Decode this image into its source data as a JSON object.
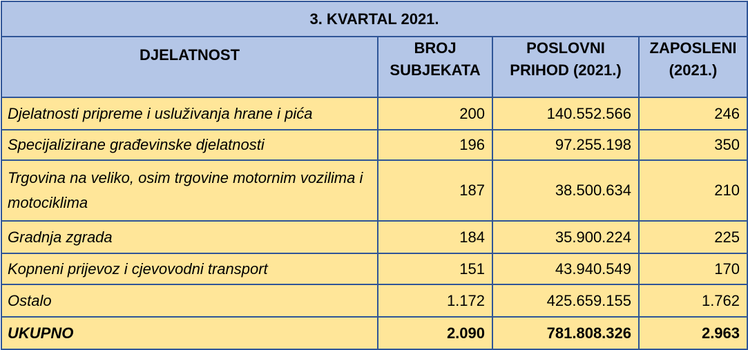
{
  "table": {
    "title": "3. KVARTAL 2021.",
    "columns": [
      "DJELATNOST",
      "BROJ SUBJEKATA",
      "POSLOVNI PRIHOD (2021.)",
      "ZAPOSLENI (2021.)"
    ],
    "column_lines": [
      [
        "DJELATNOST"
      ],
      [
        "BROJ",
        "SUBJEKATA"
      ],
      [
        "POSLOVNI",
        "PRIHOD (2021.)"
      ],
      [
        "ZAPOSLENI",
        "(2021.)"
      ]
    ],
    "rows": [
      {
        "djelatnost": "Djelatnosti pripreme i usluživanja hrane i pića",
        "broj_subjekata": "200",
        "poslovni_prihod": "140.552.566",
        "zaposleni": "246"
      },
      {
        "djelatnost": "Specijalizirane građevinske djelatnosti",
        "broj_subjekata": "196",
        "poslovni_prihod": "97.255.198",
        "zaposleni": "350"
      },
      {
        "djelatnost": "Trgovina na veliko, osim trgovine motornim vozilima i motociklima",
        "broj_subjekata": "187",
        "poslovni_prihod": "38.500.634",
        "zaposleni": "210"
      },
      {
        "djelatnost": "Gradnja zgrada",
        "broj_subjekata": "184",
        "poslovni_prihod": "35.900.224",
        "zaposleni": "225"
      },
      {
        "djelatnost": "Kopneni prijevoz i cjevovodni transport",
        "broj_subjekata": "151",
        "poslovni_prihod": "43.940.549",
        "zaposleni": "170"
      },
      {
        "djelatnost": "Ostalo",
        "broj_subjekata": "1.172",
        "poslovni_prihod": "425.659.155",
        "zaposleni": "1.762"
      }
    ],
    "total": {
      "djelatnost": "UKUPNO",
      "broj_subjekata": "2.090",
      "poslovni_prihod": "781.808.326",
      "zaposleni": "2.963"
    },
    "colors": {
      "header_bg": "#b4c6e7",
      "body_bg": "#ffe699",
      "border": "#2f5597"
    }
  }
}
